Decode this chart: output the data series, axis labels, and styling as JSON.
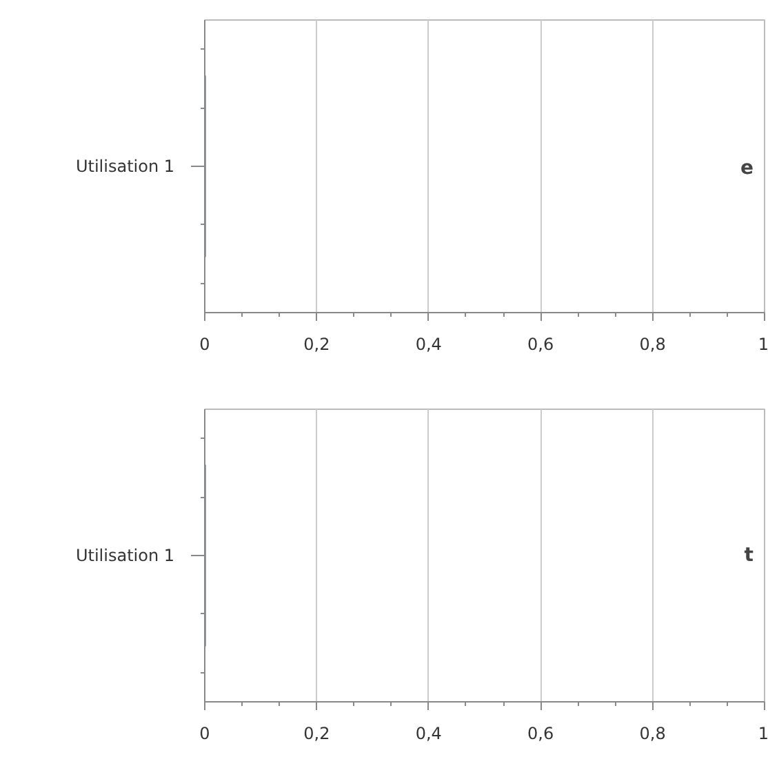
{
  "chart_data": [
    {
      "type": "bar",
      "orientation": "horizontal",
      "categories": [
        "Utilisation 1"
      ],
      "values": [
        0
      ],
      "color": "#2b3a4a",
      "xlim": [
        0,
        1
      ],
      "xticks": [
        0,
        {
          "value": 0.2,
          "label": "0,2"
        },
        {
          "value": 0.4,
          "label": "0,4"
        },
        {
          "value": 0.6,
          "label": "0,6"
        },
        {
          "value": 0.8,
          "label": "0,8"
        },
        1
      ],
      "grid": "x",
      "annotations": [
        "e"
      ]
    },
    {
      "type": "bar",
      "orientation": "horizontal",
      "categories": [
        "Utilisation 1"
      ],
      "values": [
        0
      ],
      "color": "#2b3a4a",
      "xlim": [
        0,
        1
      ],
      "xticks": [
        0,
        {
          "value": 0.2,
          "label": "0,2"
        },
        {
          "value": 0.4,
          "label": "0,4"
        },
        {
          "value": 0.6,
          "label": "0,6"
        },
        {
          "value": 0.8,
          "label": "0,8"
        },
        1
      ],
      "grid": "x",
      "annotations": [
        "t"
      ]
    }
  ]
}
